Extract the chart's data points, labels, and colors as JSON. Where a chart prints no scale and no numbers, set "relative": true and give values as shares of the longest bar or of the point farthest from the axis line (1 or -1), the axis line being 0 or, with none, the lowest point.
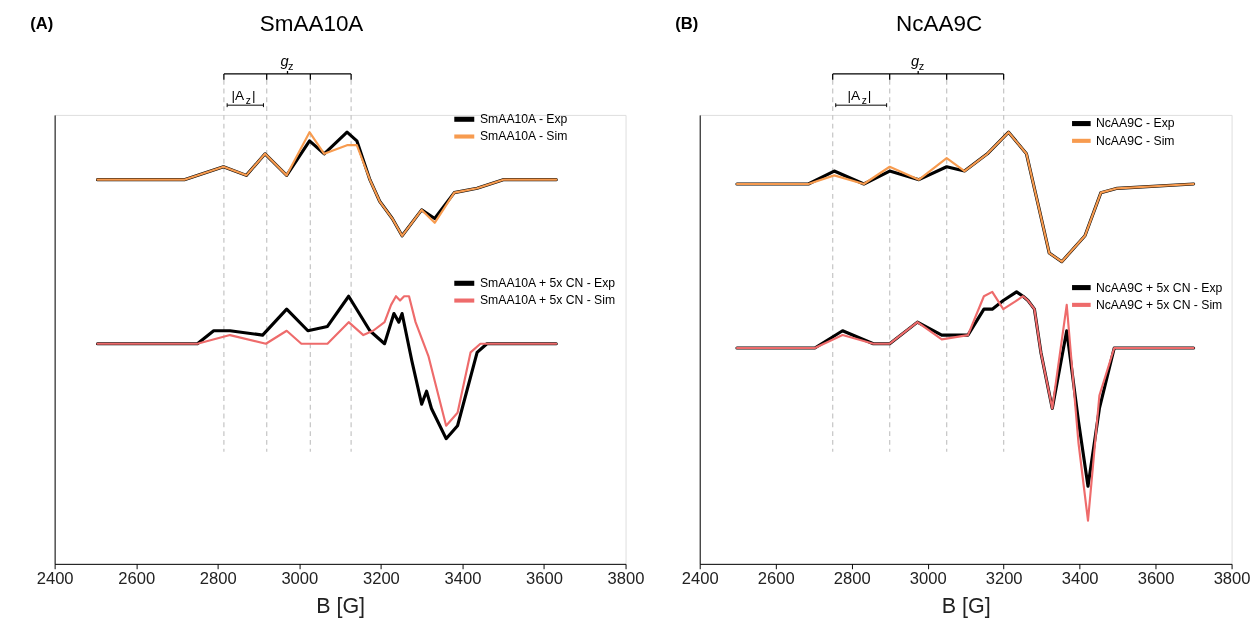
{
  "chart_data": [
    {
      "type": "line",
      "title": "SmAA10A",
      "xlabel": "B [G]",
      "xlim": [
        2400,
        3800
      ],
      "xticks": [
        2400,
        2600,
        2800,
        3000,
        3200,
        3400,
        3600,
        3800
      ],
      "relative": true,
      "grid": false,
      "legend": "top right",
      "line_style": "solid",
      "marker": "none",
      "annotations": [
        "(A)",
        "g$_{z}$",
        "|A$_{z}$|"
      ],
      "ref_lines": [
        {
          "axis": "x",
          "value": 2815,
          "color": "#c8c8c8",
          "line_style": "dashed"
        },
        {
          "axis": "x",
          "value": 2920,
          "color": "#c8c8c8",
          "line_style": "dashed"
        },
        {
          "axis": "x",
          "value": 3027,
          "color": "#c8c8c8",
          "line_style": "dashed"
        },
        {
          "axis": "x",
          "value": 3127,
          "color": "#c8c8c8",
          "line_style": "dashed"
        }
      ],
      "series": [
        {
          "name": "SmAA10A - Exp",
          "color": "#000000",
          "x": [
            2505,
            2718,
            2814,
            2870,
            2916,
            2969,
            3025,
            3061,
            3117,
            3141,
            3173,
            3197,
            3228,
            3252,
            3300,
            3332,
            3380,
            3436,
            3500,
            3630
          ],
          "values": [
            0.89,
            0.89,
            0.92,
            0.9,
            0.95,
            0.9,
            0.98,
            0.95,
            1.0,
            0.98,
            0.89,
            0.84,
            0.8,
            0.76,
            0.82,
            0.8,
            0.86,
            0.87,
            0.89,
            0.89
          ]
        },
        {
          "name": "SmAA10A - Sim",
          "color": "#f79b4f",
          "x": [
            2505,
            2718,
            2814,
            2870,
            2916,
            2969,
            3025,
            3061,
            3117,
            3141,
            3173,
            3197,
            3228,
            3252,
            3300,
            3332,
            3380,
            3436,
            3500,
            3630
          ],
          "values": [
            0.89,
            0.89,
            0.92,
            0.9,
            0.95,
            0.9,
            1.0,
            0.95,
            0.97,
            0.97,
            0.89,
            0.84,
            0.8,
            0.76,
            0.82,
            0.79,
            0.86,
            0.87,
            0.89,
            0.89
          ]
        },
        {
          "name": "SmAA10A + 5x CN - Exp",
          "color": "#000000",
          "x": [
            2505,
            2750,
            2790,
            2830,
            2910,
            2969,
            3021,
            3069,
            3121,
            3173,
            3209,
            3232,
            3244,
            3252,
            3276,
            3300,
            3312,
            3324,
            3360,
            3388,
            3436,
            3460,
            3630
          ],
          "values": [
            0.51,
            0.51,
            0.54,
            0.54,
            0.53,
            0.59,
            0.54,
            0.55,
            0.62,
            0.54,
            0.51,
            0.58,
            0.56,
            0.58,
            0.47,
            0.37,
            0.4,
            0.36,
            0.29,
            0.32,
            0.49,
            0.51,
            0.51
          ]
        },
        {
          "name": "SmAA10A + 5x CN - Sim",
          "color": "#ee6b6b",
          "x": [
            2505,
            2750,
            2830,
            2918,
            2969,
            3005,
            3069,
            3121,
            3157,
            3181,
            3209,
            3225,
            3237,
            3247,
            3257,
            3269,
            3285,
            3305,
            3317,
            3333,
            3360,
            3388,
            3420,
            3444,
            3630
          ],
          "values": [
            0.51,
            0.51,
            0.53,
            0.51,
            0.54,
            0.51,
            0.51,
            0.56,
            0.53,
            0.54,
            0.56,
            0.6,
            0.62,
            0.61,
            0.62,
            0.62,
            0.56,
            0.51,
            0.48,
            0.42,
            0.32,
            0.35,
            0.49,
            0.51,
            0.51
          ]
        }
      ]
    },
    {
      "type": "line",
      "title": "NcAA9C",
      "xlabel": "B [G]",
      "xlim": [
        2400,
        3800
      ],
      "xticks": [
        2400,
        2600,
        2800,
        3000,
        3200,
        3400,
        3600,
        3800
      ],
      "relative": true,
      "grid": false,
      "legend": "top right",
      "line_style": "solid",
      "marker": "none",
      "annotations": [
        "(B)",
        "g$_{z}$",
        "|A$_{z}$|"
      ],
      "ref_lines": [
        {
          "axis": "x",
          "value": 2750,
          "color": "#c8c8c8",
          "line_style": "dashed"
        },
        {
          "axis": "x",
          "value": 2900,
          "color": "#c8c8c8",
          "line_style": "dashed"
        },
        {
          "axis": "x",
          "value": 3050,
          "color": "#c8c8c8",
          "line_style": "dashed"
        },
        {
          "axis": "x",
          "value": 3200,
          "color": "#c8c8c8",
          "line_style": "dashed"
        }
      ],
      "series": [
        {
          "name": "NcAA9C - Exp",
          "color": "#000000",
          "x": [
            2498,
            2686,
            2754,
            2832,
            2900,
            2977,
            3050,
            3097,
            3157,
            3213,
            3260,
            3294,
            3320,
            3353,
            3414,
            3456,
            3499,
            3700
          ],
          "values": [
            0.88,
            0.88,
            0.91,
            0.88,
            0.91,
            0.89,
            0.92,
            0.91,
            0.95,
            1.0,
            0.95,
            0.82,
            0.72,
            0.7,
            0.76,
            0.86,
            0.87,
            0.88
          ]
        },
        {
          "name": "NcAA9C - Sim",
          "color": "#f79b4f",
          "x": [
            2498,
            2686,
            2754,
            2832,
            2900,
            2977,
            3050,
            3097,
            3157,
            3213,
            3260,
            3294,
            3320,
            3353,
            3414,
            3456,
            3499,
            3700
          ],
          "values": [
            0.88,
            0.88,
            0.9,
            0.88,
            0.92,
            0.89,
            0.94,
            0.91,
            0.95,
            1.0,
            0.95,
            0.82,
            0.72,
            0.7,
            0.76,
            0.86,
            0.87,
            0.88
          ]
        },
        {
          "name": "NcAA9C + 5x CN - Exp",
          "color": "#000000",
          "x": [
            2498,
            2703,
            2776,
            2857,
            2900,
            2973,
            3037,
            3106,
            3148,
            3170,
            3199,
            3234,
            3251,
            3264,
            3281,
            3298,
            3328,
            3366,
            3397,
            3422,
            3452,
            3491,
            3700
          ],
          "values": [
            0.5,
            0.5,
            0.54,
            0.51,
            0.51,
            0.56,
            0.53,
            0.53,
            0.59,
            0.59,
            0.61,
            0.63,
            0.62,
            0.61,
            0.59,
            0.49,
            0.36,
            0.54,
            0.33,
            0.18,
            0.36,
            0.5,
            0.5
          ]
        },
        {
          "name": "NcAA9C + 5x CN - Sim",
          "color": "#ee6b6b",
          "x": [
            2498,
            2703,
            2776,
            2857,
            2900,
            2973,
            3037,
            3106,
            3148,
            3170,
            3199,
            3234,
            3251,
            3264,
            3281,
            3298,
            3328,
            3366,
            3397,
            3422,
            3452,
            3491,
            3700
          ],
          "values": [
            0.5,
            0.5,
            0.53,
            0.51,
            0.51,
            0.56,
            0.52,
            0.53,
            0.62,
            0.63,
            0.59,
            0.61,
            0.62,
            0.61,
            0.59,
            0.49,
            0.36,
            0.6,
            0.28,
            0.1,
            0.39,
            0.5,
            0.5
          ]
        }
      ]
    }
  ]
}
